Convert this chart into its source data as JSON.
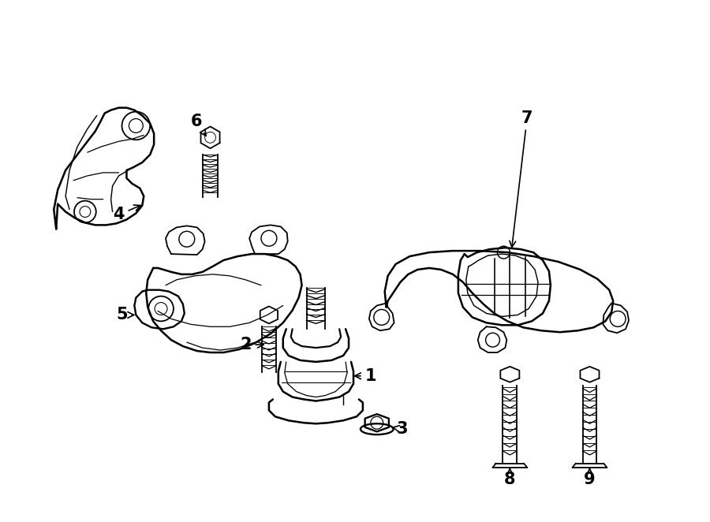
{
  "bg_color": "#ffffff",
  "line_color": "#000000",
  "lw": 1.3,
  "fig_width": 9.0,
  "fig_height": 6.62,
  "dpi": 100
}
